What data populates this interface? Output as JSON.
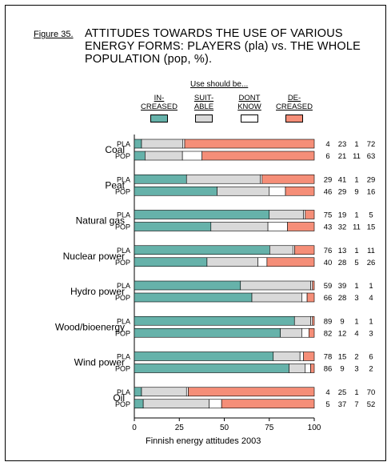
{
  "figure_label": "Figure 35.",
  "title": "ATTITUDES TOWARDS THE USE OF VARIOUS ENERGY FORMS: PLAYERS (pla) vs. THE WHOLE POPULATION (pop, %).",
  "use_header": "Use should be...",
  "footer": "Finnish energy attitudes 2003",
  "colors": {
    "increased": "#66b2aa",
    "suitable": "#d9d9d9",
    "dont_know": "#ffffff",
    "decreased": "#f58e78"
  },
  "chart_data": {
    "type": "bar",
    "orientation": "horizontal",
    "stacked": true,
    "xlim": [
      0,
      100
    ],
    "xticks": [
      "0",
      "25",
      "50",
      "75",
      "100"
    ],
    "legend": [
      {
        "key": "increased",
        "label": "IN-\nCREASED"
      },
      {
        "key": "suitable",
        "label": "SUIT-\nABLE"
      },
      {
        "key": "dont_know",
        "label": "DONT\nKNOW"
      },
      {
        "key": "decreased",
        "label": "DE-\nCREASED"
      }
    ],
    "categories": [
      {
        "name": "Coal",
        "rows": [
          {
            "group": "PLA",
            "values": [
              4,
              23,
              1,
              72
            ],
            "labels": [
              "4",
              "23",
              "1",
              "72"
            ]
          },
          {
            "group": "POP",
            "values": [
              6,
              21,
              11,
              63
            ],
            "labels": [
              "6",
              "21",
              "11",
              "63"
            ]
          }
        ]
      },
      {
        "name": "Peat",
        "rows": [
          {
            "group": "PLA",
            "values": [
              29,
              41,
              1,
              29
            ],
            "labels": [
              "29",
              "41",
              "1",
              "29"
            ]
          },
          {
            "group": "POP",
            "values": [
              46,
              29,
              9,
              16
            ],
            "labels": [
              "46",
              "29",
              "9",
              "16"
            ]
          }
        ]
      },
      {
        "name": "Natural gas",
        "rows": [
          {
            "group": "PLA",
            "values": [
              75,
              19,
              1,
              5
            ],
            "labels": [
              "75",
              "19",
              "1",
              "5"
            ]
          },
          {
            "group": "POP",
            "values": [
              43,
              32,
              11,
              15
            ],
            "labels": [
              "43",
              "32",
              "11",
              "15"
            ]
          }
        ]
      },
      {
        "name": "Nuclear power",
        "rows": [
          {
            "group": "PLA",
            "values": [
              76,
              13,
              1,
              11
            ],
            "labels": [
              "76",
              "13",
              "1",
              "11"
            ]
          },
          {
            "group": "POP",
            "values": [
              40,
              28,
              5,
              26
            ],
            "labels": [
              "40",
              "28",
              "5",
              "26"
            ]
          }
        ]
      },
      {
        "name": "Hydro power",
        "rows": [
          {
            "group": "PLA",
            "values": [
              59,
              39,
              1,
              1
            ],
            "labels": [
              "59",
              "39",
              "1",
              "1"
            ]
          },
          {
            "group": "POP",
            "values": [
              66,
              28,
              3,
              4
            ],
            "labels": [
              "66",
              "28",
              "3",
              "4"
            ]
          }
        ]
      },
      {
        "name": "Wood/bioenergy",
        "rows": [
          {
            "group": "PLA",
            "values": [
              89,
              9,
              1,
              1
            ],
            "labels": [
              "89",
              "9",
              "1",
              "1"
            ]
          },
          {
            "group": "POP",
            "values": [
              82,
              12,
              4,
              3
            ],
            "labels": [
              "82",
              "12",
              "4",
              "3"
            ]
          }
        ]
      },
      {
        "name": "Wind power",
        "rows": [
          {
            "group": "PLA",
            "values": [
              78,
              15,
              2,
              6
            ],
            "labels": [
              "78",
              "15",
              "2",
              "6"
            ]
          },
          {
            "group": "POP",
            "values": [
              86,
              9,
              3,
              2
            ],
            "labels": [
              "86",
              "9",
              "3",
              "2"
            ]
          }
        ]
      },
      {
        "name": "Oil",
        "rows": [
          {
            "group": "PLA",
            "values": [
              4,
              25,
              1,
              70
            ],
            "labels": [
              "4",
              "25",
              "1",
              "70"
            ]
          },
          {
            "group": "POP",
            "values": [
              5,
              37,
              7,
              52
            ],
            "labels": [
              "5",
              "37",
              "7",
              "52"
            ]
          }
        ]
      }
    ]
  }
}
